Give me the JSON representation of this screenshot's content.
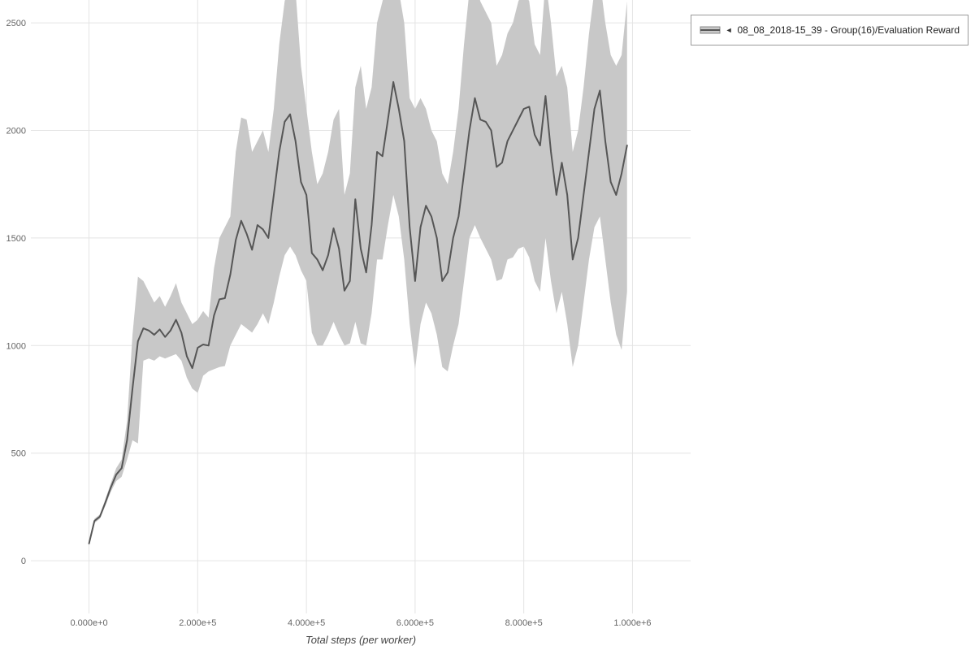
{
  "page": {
    "background": "#ffffff"
  },
  "legend": {
    "items": [
      {
        "collapse_icon": "◄",
        "label": "08_08_2018-15_39 - Group(16)/Evaluation Reward",
        "band_color": "#c8c8c8",
        "line_color": "#555555"
      }
    ]
  },
  "chart_data": {
    "type": "line",
    "title": "",
    "xlabel": "Total steps (per worker)",
    "ylabel": "",
    "grid": true,
    "grid_color": "#e4e4e4",
    "tick_color": "#666666",
    "axis_title_color": "#444444",
    "legend_position": "top-right",
    "xlim": [
      -107000,
      1107000
    ],
    "ylim": [
      -245,
      2606
    ],
    "x_ticks": {
      "values": [
        0,
        200000,
        400000,
        600000,
        800000,
        1000000
      ],
      "labels": [
        "0.000e+0",
        "2.000e+5",
        "4.000e+5",
        "6.000e+5",
        "8.000e+5",
        "1.000e+6"
      ]
    },
    "y_ticks": {
      "values": [
        0,
        500,
        1000,
        1500,
        2000,
        2500
      ],
      "labels": [
        "0",
        "500",
        "1000",
        "1500",
        "2000",
        "2500"
      ]
    },
    "series": [
      {
        "name": "08_08_2018-15_39 - Group(16)/Evaluation Reward",
        "line_color": "#565656",
        "band_color": "#c8c8c8",
        "x": [
          0,
          10000,
          20000,
          30000,
          40000,
          50000,
          60000,
          70000,
          80000,
          90000,
          100000,
          110000,
          120000,
          130000,
          140000,
          150000,
          160000,
          170000,
          180000,
          190000,
          200000,
          210000,
          220000,
          230000,
          240000,
          250000,
          260000,
          270000,
          280000,
          290000,
          300000,
          310000,
          320000,
          330000,
          340000,
          350000,
          360000,
          370000,
          380000,
          390000,
          400000,
          410000,
          420000,
          430000,
          440000,
          450000,
          460000,
          470000,
          480000,
          490000,
          500000,
          510000,
          520000,
          530000,
          540000,
          550000,
          560000,
          570000,
          580000,
          590000,
          600000,
          610000,
          620000,
          630000,
          640000,
          650000,
          660000,
          670000,
          680000,
          690000,
          700000,
          710000,
          720000,
          730000,
          740000,
          750000,
          760000,
          770000,
          780000,
          790000,
          800000,
          810000,
          820000,
          830000,
          840000,
          850000,
          860000,
          870000,
          880000,
          890000,
          900000,
          910000,
          920000,
          930000,
          940000,
          950000,
          960000,
          970000,
          980000,
          990000
        ],
        "mean": [
          80,
          185,
          205,
          270,
          340,
          400,
          430,
          560,
          800,
          1020,
          1080,
          1070,
          1050,
          1075,
          1040,
          1070,
          1120,
          1060,
          950,
          895,
          990,
          1005,
          1000,
          1140,
          1215,
          1220,
          1330,
          1490,
          1580,
          1520,
          1445,
          1560,
          1540,
          1500,
          1700,
          1900,
          2040,
          2075,
          1950,
          1760,
          1700,
          1430,
          1400,
          1350,
          1420,
          1545,
          1450,
          1255,
          1300,
          1680,
          1450,
          1340,
          1560,
          1900,
          1880,
          2050,
          2225,
          2100,
          1950,
          1550,
          1300,
          1550,
          1650,
          1600,
          1500,
          1300,
          1340,
          1500,
          1600,
          1800,
          2000,
          2150,
          2050,
          2040,
          2000,
          1830,
          1850,
          1950,
          2000,
          2050,
          2100,
          2110,
          1980,
          1930,
          2160,
          1900,
          1700,
          1850,
          1700,
          1400,
          1500,
          1700,
          1900,
          2100,
          2185,
          1950,
          1760,
          1700,
          1800,
          1930
        ],
        "lower": [
          70,
          175,
          195,
          255,
          320,
          370,
          390,
          470,
          560,
          545,
          930,
          940,
          930,
          950,
          940,
          950,
          960,
          930,
          850,
          800,
          780,
          860,
          880,
          890,
          900,
          905,
          1000,
          1050,
          1100,
          1080,
          1060,
          1100,
          1150,
          1100,
          1200,
          1320,
          1420,
          1460,
          1420,
          1350,
          1300,
          1060,
          1000,
          1000,
          1050,
          1110,
          1050,
          1000,
          1010,
          1110,
          1010,
          1000,
          1150,
          1400,
          1400,
          1560,
          1700,
          1600,
          1400,
          1100,
          890,
          1100,
          1200,
          1150,
          1050,
          900,
          880,
          1000,
          1100,
          1300,
          1500,
          1560,
          1500,
          1450,
          1400,
          1300,
          1310,
          1400,
          1410,
          1450,
          1460,
          1410,
          1300,
          1250,
          1500,
          1300,
          1150,
          1250,
          1100,
          900,
          1000,
          1200,
          1400,
          1550,
          1600,
          1400,
          1200,
          1050,
          980,
          1250
        ],
        "upper": [
          90,
          195,
          215,
          285,
          360,
          430,
          470,
          650,
          1050,
          1320,
          1300,
          1250,
          1200,
          1230,
          1180,
          1230,
          1290,
          1200,
          1150,
          1100,
          1120,
          1160,
          1130,
          1360,
          1500,
          1550,
          1600,
          1900,
          2060,
          2050,
          1900,
          1950,
          2000,
          1900,
          2100,
          2400,
          2600,
          2700,
          2650,
          2300,
          2100,
          1900,
          1750,
          1800,
          1900,
          2050,
          2100,
          1700,
          1800,
          2200,
          2300,
          2100,
          2200,
          2500,
          2600,
          2700,
          2700,
          2650,
          2500,
          2150,
          2100,
          2150,
          2100,
          2000,
          1950,
          1800,
          1750,
          1900,
          2100,
          2400,
          2650,
          2700,
          2600,
          2550,
          2500,
          2300,
          2350,
          2450,
          2500,
          2600,
          2650,
          2600,
          2400,
          2350,
          2700,
          2500,
          2250,
          2300,
          2200,
          1900,
          2000,
          2200,
          2450,
          2650,
          2700,
          2500,
          2350,
          2300,
          2350,
          2600
        ]
      }
    ]
  }
}
